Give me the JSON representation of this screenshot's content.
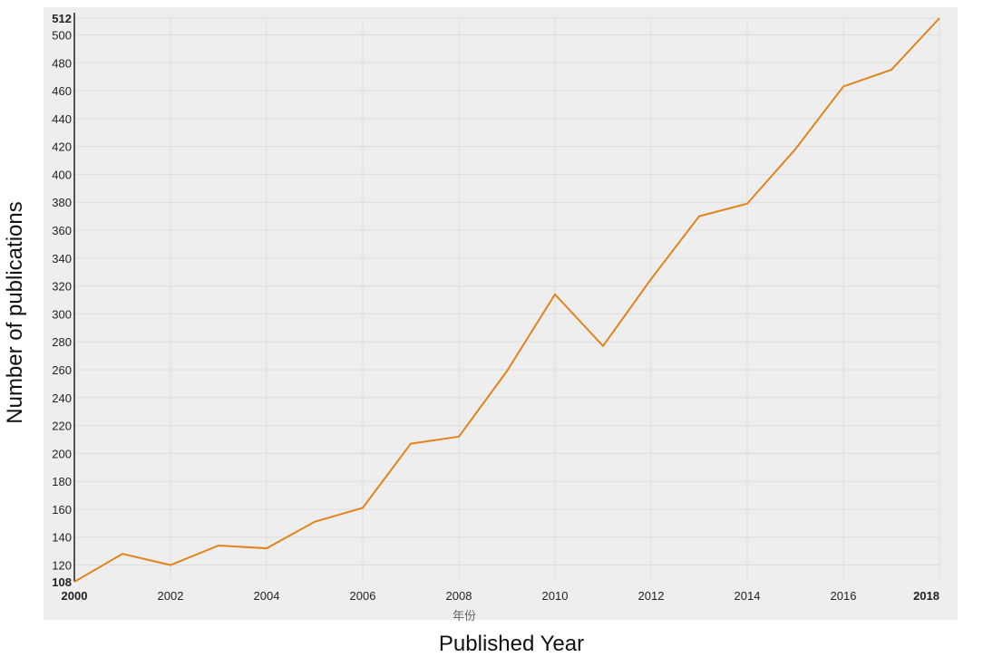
{
  "chart_data": {
    "type": "line",
    "title": "",
    "xlabel": "Published Year",
    "ylabel": "Number of publications",
    "x_axis_sublabel": "年份",
    "x": [
      2000,
      2001,
      2002,
      2003,
      2004,
      2005,
      2006,
      2007,
      2008,
      2009,
      2010,
      2011,
      2012,
      2013,
      2014,
      2015,
      2016,
      2017,
      2018
    ],
    "series": [
      {
        "values": [
          108,
          128,
          120,
          134,
          132,
          151,
          161,
          207,
          212,
          259,
          314,
          277,
          325,
          370,
          379,
          418,
          463,
          475,
          512
        ],
        "color": "#e0841c"
      }
    ],
    "xlim": [
      2000,
      2018
    ],
    "ylim": [
      108,
      512
    ],
    "x_ticks": [
      "2000",
      "2002",
      "2004",
      "2006",
      "2008",
      "2010",
      "2012",
      "2014",
      "2016",
      "2018"
    ],
    "x_ticks_bold": [
      "2000",
      "2018"
    ],
    "y_ticks": [
      "108",
      "120",
      "140",
      "160",
      "180",
      "200",
      "220",
      "240",
      "260",
      "280",
      "300",
      "320",
      "340",
      "360",
      "380",
      "400",
      "420",
      "440",
      "460",
      "480",
      "500",
      "512"
    ],
    "y_ticks_bold": [
      "108",
      "512"
    ],
    "grid": true,
    "plot_background": "#eeeeee",
    "grid_color": "#dddddd"
  }
}
